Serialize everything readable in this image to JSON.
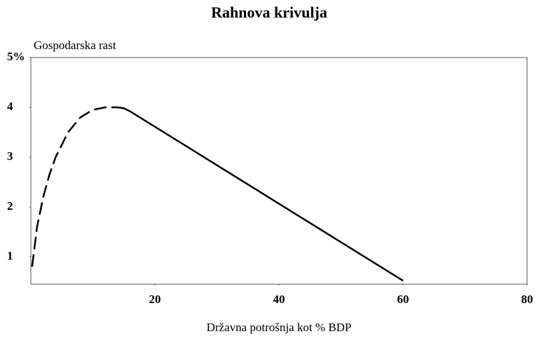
{
  "chart_data": {
    "type": "line",
    "title": "Rahnova krivulja",
    "y_label": "Gospodarska rast",
    "x_label": "Državna potrošnja kot % BDP",
    "xlim": [
      0,
      80
    ],
    "ylim": [
      0.45,
      5
    ],
    "xticks": [
      20,
      40,
      60,
      80
    ],
    "yticks": [
      1,
      2,
      3,
      4,
      {
        "value": 5,
        "label": "5%"
      }
    ],
    "grid": false,
    "series": [
      {
        "color": "#000000",
        "dashed": true,
        "x": [
          0.2,
          1,
          2,
          3,
          4,
          6,
          8,
          10,
          12,
          14
        ],
        "values": [
          0.8,
          1.6,
          2.2,
          2.65,
          3.0,
          3.5,
          3.8,
          3.95,
          4.0,
          4.0
        ]
      },
      {
        "color": "#000000",
        "dashed": false,
        "x": [
          14,
          15,
          16,
          60
        ],
        "values": [
          4.0,
          3.98,
          3.92,
          0.52
        ]
      }
    ]
  }
}
